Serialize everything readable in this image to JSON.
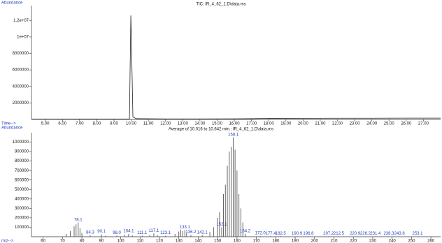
{
  "chart_data": [
    {
      "type": "line",
      "title": "TIC: IR_4_62_1.D\\data.ms",
      "y_label": "Abundance",
      "x_label": "Time-->",
      "xlim": [
        4.2,
        28
      ],
      "ylim": [
        0,
        13800000
      ],
      "xticks": [
        {
          "value": 5,
          "label": "5.00"
        },
        {
          "value": 6,
          "label": "6.00"
        },
        {
          "value": 7,
          "label": "7.00"
        },
        {
          "value": 8,
          "label": "8.00"
        },
        {
          "value": 9,
          "label": "9.00"
        },
        {
          "value": 10,
          "label": "10.00"
        },
        {
          "value": 11,
          "label": "11.00"
        },
        {
          "value": 12,
          "label": "12.00"
        },
        {
          "value": 13,
          "label": "13.00"
        },
        {
          "value": 14,
          "label": "14.00"
        },
        {
          "value": 15,
          "label": "15.00"
        },
        {
          "value": 16,
          "label": "16.00"
        },
        {
          "value": 17,
          "label": "17.00"
        },
        {
          "value": 18,
          "label": "18.00"
        },
        {
          "value": 19,
          "label": "19.00"
        },
        {
          "value": 20,
          "label": "20.00"
        },
        {
          "value": 21,
          "label": "21.00"
        },
        {
          "value": 22,
          "label": "22.00"
        },
        {
          "value": 23,
          "label": "23.00"
        },
        {
          "value": 24,
          "label": "24.00"
        },
        {
          "value": 25,
          "label": "25.00"
        },
        {
          "value": 26,
          "label": "26.00"
        },
        {
          "value": 27,
          "label": "27.00"
        }
      ],
      "yticks": [
        2000000,
        4000000,
        6000000,
        8000000,
        {
          "value": 10000000,
          "label": "1e+07"
        },
        {
          "value": 12000000,
          "label": "1.2e+07"
        }
      ],
      "series": [
        {
          "name": "TIC",
          "color": "#222222",
          "x": [
            4.2,
            6,
            8,
            9.9,
            9.98,
            10.02,
            10.1,
            10.3,
            12,
            14,
            16,
            17,
            18,
            20,
            22,
            24,
            26,
            28
          ],
          "values": [
            40000,
            45000,
            50000,
            60000,
            12600000,
            9000000,
            300000,
            90000,
            60000,
            60000,
            70000,
            90000,
            130000,
            140000,
            150000,
            150000,
            160000,
            160000
          ]
        }
      ]
    },
    {
      "type": "bar",
      "title": "Average of 10.016 to 10.642 min.: IR_4_62_1.D\\data.ms",
      "y_label": "Abundance",
      "x_label": "m/z-->",
      "xlim": [
        54,
        265
      ],
      "ylim": [
        0,
        1100000
      ],
      "xticks": [
        60,
        70,
        80,
        90,
        100,
        110,
        120,
        130,
        140,
        150,
        160,
        170,
        180,
        190,
        200,
        210,
        220,
        230,
        240,
        250,
        260
      ],
      "yticks": [
        100000,
        200000,
        300000,
        400000,
        500000,
        600000,
        700000,
        800000,
        900000,
        1000000
      ],
      "color": "#555555",
      "label_color": "#1f3fbf",
      "x": [
        72,
        74,
        76,
        77,
        78.1,
        79,
        80,
        84.3,
        90.1,
        92,
        98.0,
        102,
        104.1,
        106,
        111.1,
        115,
        117.1,
        119,
        123.1,
        128,
        130,
        131,
        132,
        133.1,
        134,
        136.2,
        142.1,
        146,
        148,
        150,
        151,
        152.1,
        153,
        154,
        155,
        156,
        157,
        158.1,
        159,
        160,
        161,
        162,
        163,
        164.2,
        172.0,
        177.4,
        182.5,
        190.9,
        196.8,
        207.2,
        212.5,
        220.9,
        226.2,
        231.4,
        238.3,
        243.8,
        253.1
      ],
      "values": [
        30000,
        60000,
        110000,
        130000,
        150000,
        90000,
        40000,
        15000,
        25000,
        10000,
        12000,
        20000,
        30000,
        15000,
        12000,
        20000,
        35000,
        15000,
        10000,
        30000,
        55000,
        75000,
        60000,
        70000,
        40000,
        20000,
        15000,
        50000,
        100000,
        200000,
        260000,
        100000,
        450000,
        550000,
        750000,
        900000,
        950000,
        1050000,
        920000,
        700000,
        450000,
        300000,
        150000,
        30000,
        8000,
        6000,
        6000,
        5000,
        5000,
        5000,
        5000,
        4000,
        4000,
        4000,
        4000,
        4000,
        3000
      ],
      "x_labels": [
        null,
        null,
        null,
        null,
        "78.1",
        null,
        null,
        "84.3",
        "90.1",
        null,
        "98.0",
        null,
        "104.1",
        null,
        "111.1",
        null,
        "117.1",
        null,
        "123.1",
        null,
        null,
        null,
        null,
        "133.1",
        null,
        "136.2",
        "142.1",
        null,
        null,
        null,
        null,
        "152.1",
        null,
        null,
        null,
        null,
        null,
        "158.1",
        null,
        null,
        null,
        null,
        null,
        "164.2",
        "172.0",
        "177.4",
        "182.5",
        "190.9",
        "196.8",
        "207.2",
        "212.5",
        "220.9",
        "226.2",
        "231.4",
        "238.3",
        "243.8",
        "253.1"
      ]
    }
  ]
}
